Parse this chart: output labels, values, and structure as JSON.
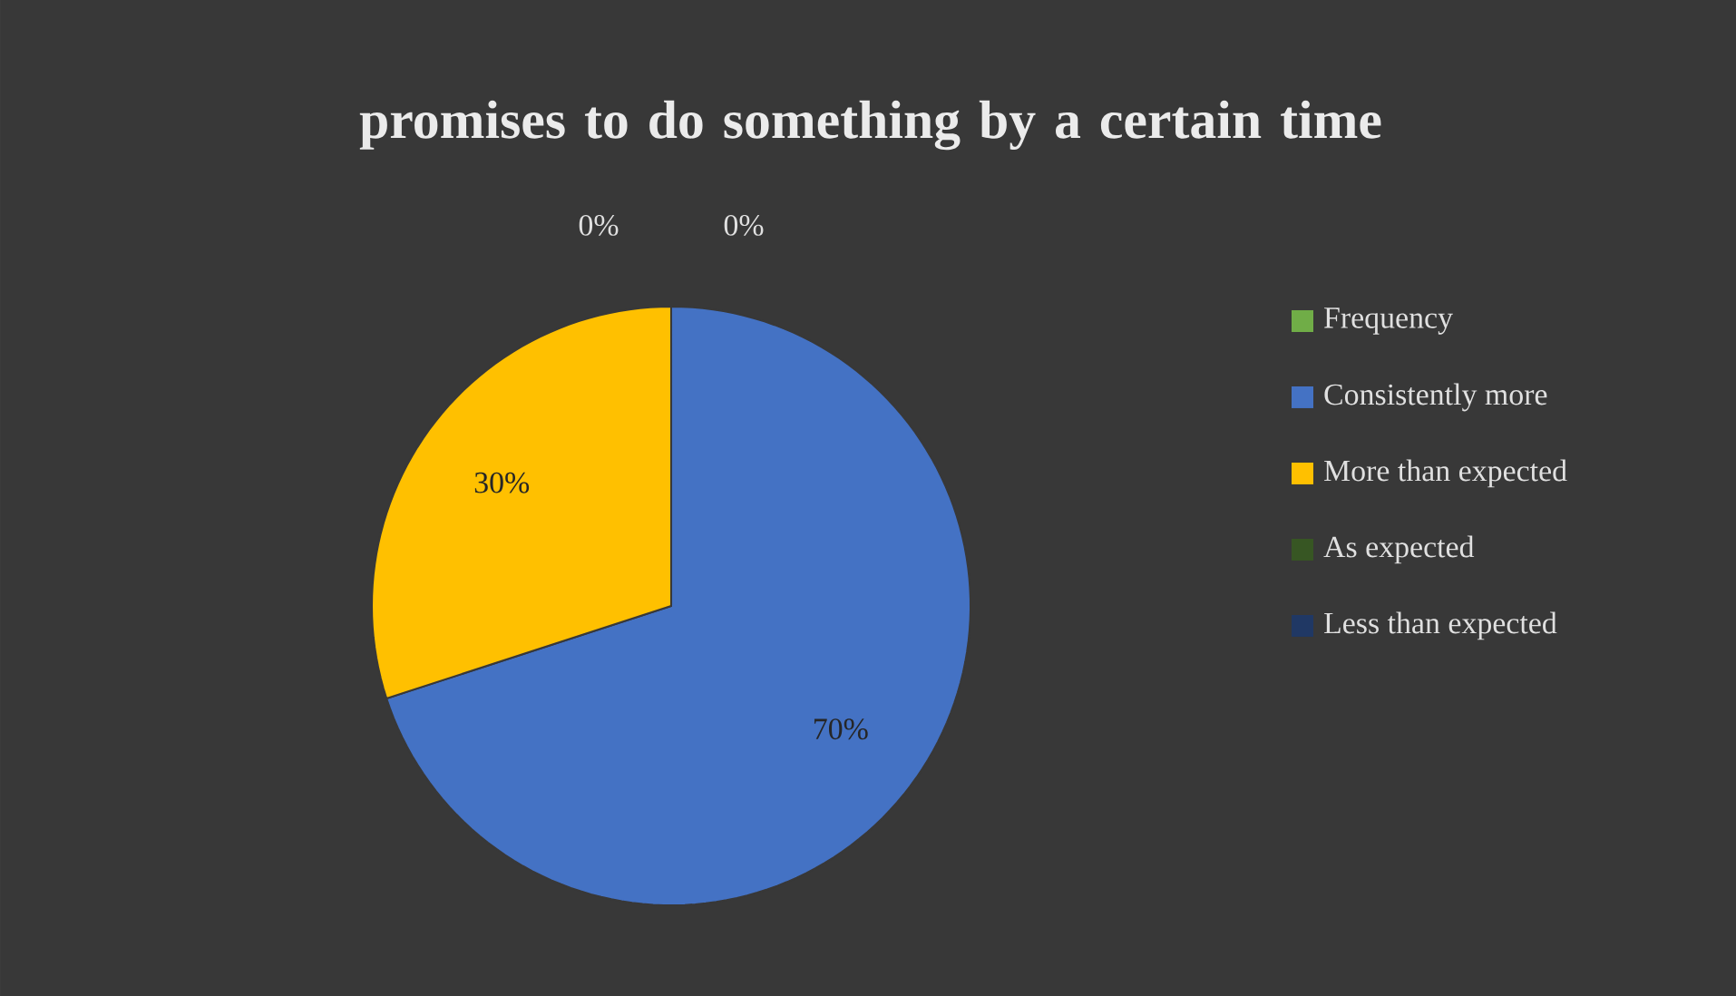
{
  "chart_data": {
    "type": "pie",
    "title": "promises to do something by a certain time",
    "categories": [
      "Frequency",
      "Consistently more",
      "More than expected",
      "As expected",
      "Less than expected"
    ],
    "values": [
      0,
      70,
      30,
      0,
      0
    ],
    "value_labels": [
      null,
      "70%",
      "30%",
      "0%",
      "0%"
    ],
    "colors": [
      "#70ad47",
      "#4472c4",
      "#ffc000",
      "#375623",
      "#203864"
    ],
    "legend": "right"
  }
}
